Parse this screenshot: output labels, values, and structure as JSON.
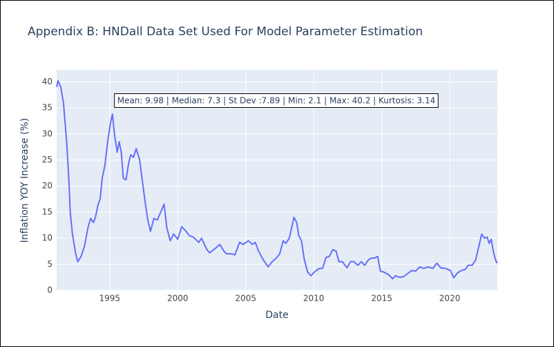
{
  "chart_data": {
    "type": "line",
    "title": "Appendix B: HNDall Data Set Used For Model Parameter Estimation",
    "x_label": "Date",
    "y_label": "Inflation YOY Increase (%)",
    "annotation": "Mean: 9.98 | Median: 7.3 | St Dev :7.89 | Min: 2.1 | Max: 40.2 | Kurtosis: 3.14",
    "xlim": [
      1991.1,
      2023.5
    ],
    "ylim": [
      0,
      42.3
    ],
    "xticks": [
      1995,
      2000,
      2005,
      2010,
      2015,
      2020
    ],
    "yticks": [
      0,
      5,
      10,
      15,
      20,
      25,
      30,
      35,
      40
    ],
    "grid": true,
    "series": [
      {
        "color": "#636efa",
        "x": [
          1991.1,
          1991.2,
          1991.4,
          1991.6,
          1991.85,
          1992.0,
          1992.1,
          1992.25,
          1992.5,
          1992.65,
          1992.9,
          1993.15,
          1993.4,
          1993.6,
          1993.8,
          1993.95,
          1994.15,
          1994.3,
          1994.45,
          1994.65,
          1994.85,
          1995.05,
          1995.2,
          1995.35,
          1995.55,
          1995.7,
          1995.85,
          1996.0,
          1996.2,
          1996.4,
          1996.55,
          1996.75,
          1996.95,
          1997.2,
          1997.4,
          1997.6,
          1997.8,
          1998.0,
          1998.25,
          1998.5,
          1998.75,
          1999.0,
          1999.2,
          1999.45,
          1999.7,
          2000.0,
          2000.3,
          2000.55,
          2000.85,
          2001.15,
          2001.55,
          2001.75,
          2002.15,
          2002.35,
          2002.65,
          2003.1,
          2003.4,
          2003.6,
          2003.95,
          2004.2,
          2004.55,
          2004.8,
          2005.2,
          2005.5,
          2005.7,
          2005.95,
          2006.3,
          2006.65,
          2006.95,
          2007.25,
          2007.5,
          2007.75,
          2007.95,
          2008.2,
          2008.55,
          2008.75,
          2008.9,
          2009.1,
          2009.3,
          2009.55,
          2009.8,
          2010.05,
          2010.4,
          2010.65,
          2010.9,
          2011.15,
          2011.4,
          2011.65,
          2011.85,
          2012.1,
          2012.45,
          2012.7,
          2012.95,
          2013.25,
          2013.5,
          2013.75,
          2014.0,
          2014.25,
          2014.5,
          2014.7,
          2014.9,
          2015.15,
          2015.5,
          2015.8,
          2016.0,
          2016.3,
          2016.6,
          2016.9,
          2017.2,
          2017.5,
          2017.8,
          2018.1,
          2018.4,
          2018.75,
          2019.05,
          2019.35,
          2019.7,
          2020.05,
          2020.3,
          2020.55,
          2020.85,
          2021.15,
          2021.35,
          2021.65,
          2021.9,
          2022.1,
          2022.35,
          2022.55,
          2022.75,
          2022.9,
          2023.05,
          2023.2,
          2023.35,
          2023.45,
          2023.5
        ],
        "values": [
          39,
          40.2,
          39,
          36,
          28,
          21,
          15,
          11,
          7,
          5.5,
          6.5,
          8.5,
          12,
          13.8,
          13,
          14,
          16.5,
          17.5,
          21.5,
          24,
          28.5,
          32,
          33.8,
          30,
          26.5,
          28.5,
          26.5,
          21.5,
          21.2,
          24.5,
          26,
          25.5,
          27.2,
          25,
          21,
          17,
          13.5,
          11.3,
          13.8,
          13.5,
          15,
          16.5,
          12,
          9.5,
          10.8,
          9.8,
          12.2,
          11.5,
          10.5,
          10.2,
          9.2,
          10,
          7.8,
          7.2,
          7.8,
          8.8,
          7.5,
          7,
          7,
          6.8,
          9.2,
          8.8,
          9.5,
          8.8,
          9.2,
          7.5,
          5.8,
          4.5,
          5.5,
          6.2,
          7,
          9.5,
          9,
          10,
          14,
          13,
          10.5,
          9.5,
          6,
          3.5,
          2.8,
          3.5,
          4.2,
          4.2,
          6.3,
          6.5,
          7.8,
          7.5,
          5.5,
          5.5,
          4.3,
          5.5,
          5.5,
          4.8,
          5.5,
          4.8,
          5.8,
          6.2,
          6.2,
          6.5,
          3.7,
          3.5,
          3,
          2.2,
          2.8,
          2.5,
          2.6,
          3.2,
          3.8,
          3.7,
          4.5,
          4.2,
          4.5,
          4.2,
          5.2,
          4.3,
          4.2,
          3.8,
          2.4,
          3.3,
          3.8,
          4,
          4.8,
          4.8,
          5.8,
          8,
          10.8,
          10,
          10.2,
          9,
          9.8,
          7.5,
          6,
          5.3,
          5.5
        ]
      }
    ]
  }
}
